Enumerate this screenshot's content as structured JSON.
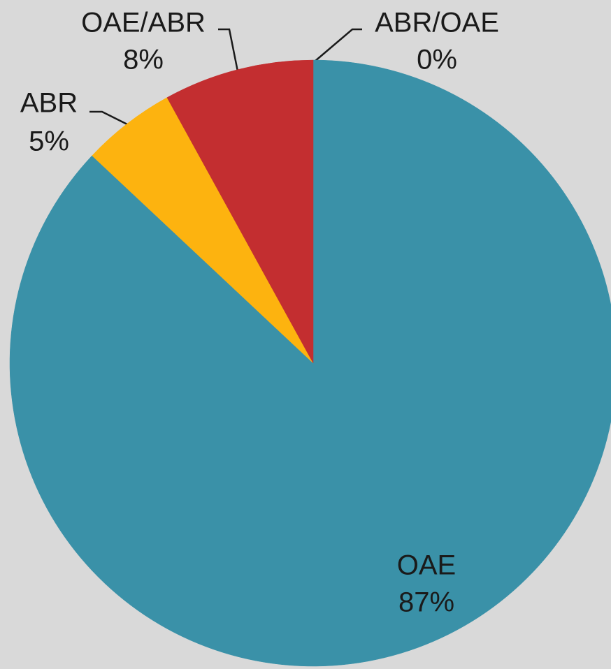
{
  "chart_data": {
    "type": "pie",
    "categories": [
      "OAE",
      "ABR",
      "OAE/ABR",
      "ABR/OAE"
    ],
    "values": [
      87,
      5,
      8,
      0
    ],
    "value_labels": [
      "87%",
      "5%",
      "8%",
      "0%"
    ],
    "colors": [
      "#3a91a8",
      "#fdb30f",
      "#c32e30",
      "#7f7f7f"
    ]
  }
}
